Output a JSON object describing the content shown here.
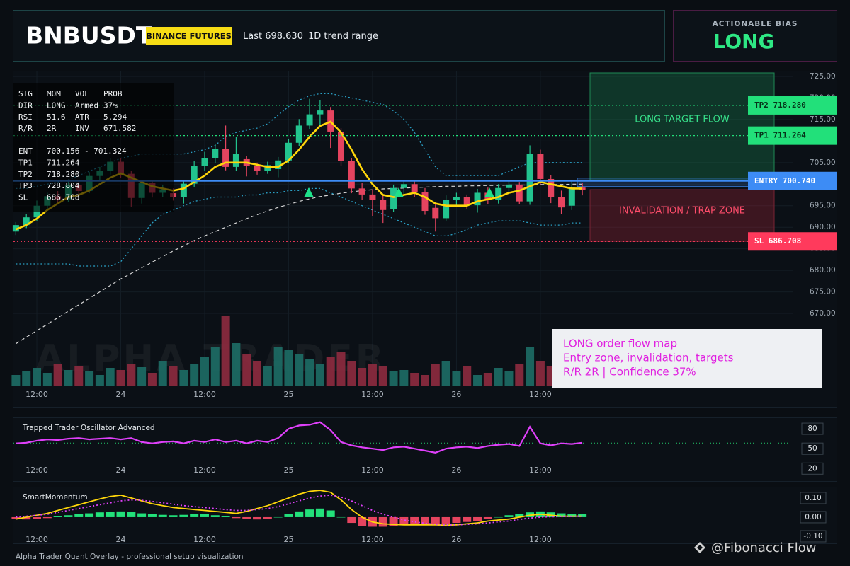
{
  "header": {
    "symbol": "BNBUSDT",
    "badge": "BINANCE FUTURES",
    "last": "Last 698.630",
    "range": "1D trend range"
  },
  "bias": {
    "label": "ACTIONABLE BIAS",
    "value": "LONG"
  },
  "info_panel": {
    "rows": [
      [
        "SIG",
        "MOM",
        "VOL",
        "PROB"
      ],
      [
        "DIR",
        "LONG",
        "Armed",
        "37%"
      ],
      [
        "RSI",
        "51.6",
        "ATR",
        "5.294"
      ],
      [
        "R/R",
        "2R",
        "INV",
        "671.582"
      ],
      [
        "ENT",
        "700.156 - 701.324"
      ],
      [
        "TP1",
        "711.264"
      ],
      [
        "TP2",
        "718.280"
      ],
      [
        "TP3",
        "728.804"
      ],
      [
        "SL",
        "686.708"
      ]
    ]
  },
  "zones": {
    "target": "LONG TARGET FLOW",
    "invalidation": "INVALIDATION / TRAP ZONE"
  },
  "annotation": {
    "lines": [
      "LONG order flow map",
      "Entry zone, invalidation, targets",
      "R/R 2R | Confidence 37%"
    ]
  },
  "watermark": "ALPHA TRADER",
  "footer": "Alpha Trader Quant Overlay - professional setup visualization",
  "credit": "@Fibonacci Flow",
  "chart_data": [
    {
      "type": "candlestick",
      "categories": [
        null,
        null,
        "12:00",
        null,
        null,
        null,
        null,
        null,
        null,
        null,
        "24",
        null,
        null,
        null,
        null,
        null,
        null,
        null,
        "12:00",
        null,
        null,
        null,
        null,
        null,
        null,
        null,
        "25",
        null,
        null,
        null,
        null,
        null,
        null,
        null,
        "12:00",
        null,
        null,
        null,
        null,
        null,
        null,
        null,
        "26",
        null,
        null,
        null,
        null,
        null,
        null,
        null,
        "12:00",
        null,
        null,
        null,
        null
      ],
      "up_color": "#22c38e",
      "down_color": "#e5445f",
      "candles": [
        [
          689.0,
          691.2,
          688.2,
          690.5
        ],
        [
          690.5,
          693.0,
          689.8,
          692.3
        ],
        [
          692.3,
          696.2,
          691.5,
          695.0
        ],
        [
          695.0,
          698.0,
          694.2,
          697.2
        ],
        [
          697.2,
          698.4,
          695.6,
          696.5
        ],
        [
          696.5,
          700.6,
          695.9,
          699.8
        ],
        [
          699.8,
          700.9,
          697.5,
          698.4
        ],
        [
          698.4,
          702.8,
          697.9,
          701.9
        ],
        [
          701.9,
          704.0,
          701.0,
          703.0
        ],
        [
          703.0,
          706.1,
          702.2,
          705.2
        ],
        [
          705.2,
          706.0,
          701.5,
          702.4
        ],
        [
          702.4,
          703.0,
          694.8,
          696.8
        ],
        [
          696.8,
          701.0,
          695.5,
          700.2
        ],
        [
          700.2,
          700.8,
          696.9,
          698.0
        ],
        [
          698.0,
          699.9,
          697.0,
          698.8
        ],
        [
          697.9,
          699.0,
          696.2,
          697.0
        ],
        [
          697.0,
          700.9,
          695.5,
          700.1
        ],
        [
          700.1,
          705.3,
          699.4,
          704.3
        ],
        [
          704.3,
          707.5,
          703.0,
          706.0
        ],
        [
          706.0,
          709.4,
          704.9,
          708.2
        ],
        [
          708.2,
          713.6,
          703.2,
          704.0
        ],
        [
          704.0,
          711.0,
          703.0,
          707.1
        ],
        [
          705.8,
          706.5,
          701.8,
          704.2
        ],
        [
          704.2,
          705.0,
          702.2,
          703.1
        ],
        [
          703.1,
          705.2,
          702.4,
          704.4
        ],
        [
          703.5,
          706.3,
          701.6,
          705.5
        ],
        [
          705.5,
          710.4,
          704.8,
          709.6
        ],
        [
          709.6,
          715.1,
          708.9,
          713.6
        ],
        [
          713.6,
          719.8,
          712.8,
          716.2
        ],
        [
          716.2,
          719.5,
          713.8,
          717.1
        ],
        [
          717.1,
          717.9,
          708.4,
          712.2
        ],
        [
          712.2,
          713.0,
          704.3,
          705.3
        ],
        [
          705.3,
          706.1,
          697.9,
          699.0
        ],
        [
          699.0,
          700.3,
          696.3,
          697.6
        ],
        [
          697.6,
          698.8,
          692.5,
          696.4
        ],
        [
          696.4,
          697.3,
          691.0,
          694.0
        ],
        [
          694.2,
          699.9,
          693.5,
          699.1
        ],
        [
          699.1,
          701.0,
          697.4,
          700.0
        ],
        [
          700.0,
          700.8,
          697.0,
          698.2
        ],
        [
          698.2,
          699.1,
          692.9,
          693.8
        ],
        [
          694.5,
          695.3,
          689.0,
          692.1
        ],
        [
          692.1,
          697.4,
          691.4,
          696.3
        ],
        [
          696.3,
          698.0,
          694.7,
          697.0
        ],
        [
          697.0,
          697.6,
          694.3,
          695.1
        ],
        [
          695.1,
          698.9,
          693.4,
          698.0
        ],
        [
          698.0,
          699.2,
          695.3,
          696.3
        ],
        [
          696.3,
          700.0,
          695.5,
          699.1
        ],
        [
          699.1,
          700.7,
          697.8,
          699.9
        ],
        [
          699.9,
          700.5,
          695.4,
          696.0
        ],
        [
          696.0,
          709.0,
          695.2,
          707.1
        ],
        [
          707.1,
          708.0,
          699.8,
          701.2
        ],
        [
          701.2,
          702.1,
          695.6,
          697.0
        ],
        [
          697.0,
          698.5,
          693.0,
          694.6
        ],
        [
          695.0,
          700.9,
          694.0,
          699.2
        ],
        [
          699.2,
          700.3,
          697.4,
          698.63
        ]
      ],
      "overlays": [
        {
          "color": "#d8d8d8",
          "style": "dashed",
          "width": 1.2,
          "values": [
            663,
            664.5,
            666,
            667.5,
            669,
            670.5,
            672,
            673.5,
            675,
            676.5,
            678,
            679.3,
            680.6,
            681.9,
            683.2,
            684.5,
            685.7,
            686.9,
            688,
            689,
            690,
            691,
            692,
            692.9,
            693.8,
            694.6,
            695.3,
            696,
            696.6,
            697.1,
            697.5,
            697.9,
            698.2,
            698.5,
            698.7,
            698.9,
            699,
            699.1,
            699.2,
            699.3,
            699.4,
            699.5,
            699.5,
            699.6,
            699.6,
            699.7,
            699.7,
            699.8,
            699.8,
            699.8,
            699.9,
            699.9,
            699.9,
            700,
            700
          ]
        },
        {
          "color": "#2a9fc4",
          "style": "dotted",
          "width": 1.3,
          "values": [
            699,
            699,
            699.5,
            700,
            700.5,
            701,
            702,
            703,
            704,
            705,
            706,
            706.5,
            707,
            707,
            707,
            707,
            707,
            707.5,
            708,
            709,
            711,
            712,
            712.5,
            713,
            714,
            716,
            718,
            719.5,
            720.5,
            721,
            721,
            720.5,
            720,
            719.5,
            719,
            718.5,
            717,
            715,
            712,
            708,
            704,
            702,
            702,
            702,
            702,
            702,
            702,
            703,
            704,
            705,
            705,
            705,
            705,
            705,
            705
          ]
        },
        {
          "color": "#2a9fc4",
          "style": "dotted",
          "width": 1.3,
          "values": [
            681.5,
            681.5,
            681.5,
            681.5,
            681.5,
            681.5,
            681,
            681,
            681,
            681,
            682,
            685,
            688,
            691,
            693,
            694,
            695,
            696,
            696.5,
            697,
            697,
            697,
            697.5,
            697.5,
            698,
            698,
            698.5,
            698.5,
            699,
            699,
            698,
            697,
            696,
            695,
            694,
            693,
            692,
            691,
            690,
            689,
            688,
            688,
            688.5,
            689.5,
            690.5,
            691,
            691.5,
            691.5,
            691.5,
            691,
            690.5,
            690.5,
            690.5,
            691,
            691
          ]
        },
        {
          "color": "#ffd60a",
          "style": "solid",
          "width": 2.6,
          "values": [
            689.5,
            690.5,
            692,
            694,
            695.5,
            697,
            697.5,
            698.5,
            700,
            701.5,
            702.5,
            701.5,
            700.5,
            699.5,
            699,
            698.5,
            699,
            700.5,
            702,
            704,
            705,
            705,
            705,
            704.5,
            704,
            704,
            705.5,
            708,
            711,
            713.5,
            714.5,
            712,
            708,
            703.5,
            700,
            697.5,
            697,
            697.5,
            698,
            697,
            695.5,
            695,
            695,
            695,
            696,
            696.5,
            697,
            698,
            698.5,
            699.5,
            700.5,
            700,
            699.5,
            699,
            699
          ]
        }
      ],
      "levels": [
        {
          "label": "TP2 718.280",
          "value": 718.28,
          "color": "#22e07a",
          "style": "dotted"
        },
        {
          "label": "TP1 711.264",
          "value": 711.264,
          "color": "#22e07a",
          "style": "dotted"
        },
        {
          "label": "ENTRY 700.740",
          "value": 700.74,
          "color": "#3d8cf5",
          "style": "solid"
        },
        {
          "label": "SL 686.708",
          "value": 686.708,
          "color": "#ff3a5c",
          "style": "dotted"
        }
      ],
      "ylim": [
        653.26,
        726.31
      ],
      "yticks": [
        {
          "value": 725,
          "label": "725.00"
        },
        {
          "value": 720,
          "label": "720.00"
        },
        {
          "value": 715,
          "label": "715.00"
        },
        {
          "value": 710,
          "label": "710.00"
        },
        {
          "value": 705,
          "label": "705.00"
        },
        {
          "value": 700,
          "label": "700.00"
        },
        {
          "value": 695,
          "label": "695.00"
        },
        {
          "value": 690,
          "label": "690.00"
        },
        {
          "value": 685,
          "label": "685.00"
        },
        {
          "value": 680,
          "label": "680.00"
        },
        {
          "value": 675,
          "label": "675.00"
        },
        {
          "value": 670,
          "label": "670.00"
        }
      ],
      "grid": true
    },
    {
      "type": "volume",
      "up_color": "#1d6e66",
      "down_color": "#8e2b3f",
      "values": [
        15,
        20,
        25,
        18,
        30,
        22,
        28,
        20,
        15,
        25,
        22,
        30,
        26,
        18,
        35,
        28,
        22,
        30,
        40,
        55,
        98,
        60,
        45,
        35,
        28,
        55,
        50,
        45,
        38,
        30,
        40,
        48,
        35,
        25,
        30,
        28,
        20,
        22,
        18,
        15,
        30,
        35,
        20,
        28,
        15,
        18,
        25,
        20,
        30,
        55,
        35,
        28,
        18,
        15,
        12
      ]
    },
    {
      "type": "line",
      "title": "Trapped Trader Oscillator Advanced",
      "color": "#e040fb",
      "values": [
        58,
        59,
        62,
        64,
        63,
        65,
        66,
        64,
        65,
        66,
        64,
        66,
        60,
        58,
        60,
        61,
        58,
        62,
        60,
        64,
        60,
        62,
        58,
        62,
        60,
        66,
        80,
        85,
        86,
        90,
        78,
        60,
        55,
        52,
        50,
        48,
        52,
        53,
        50,
        47,
        44,
        50,
        52,
        53,
        51,
        54,
        56,
        57,
        54,
        83,
        58,
        55,
        58,
        57,
        59
      ],
      "ylim": [
        15,
        95
      ],
      "yticks": [
        80,
        50,
        20
      ],
      "grid": true
    },
    {
      "type": "momentum",
      "title": "SmartMomentum",
      "up_color": "#22e07a",
      "down_color": "#e5445f",
      "values": [
        -0.01,
        -0.012,
        -0.01,
        -0.005,
        0.005,
        0.01,
        0.015,
        0.02,
        0.025,
        0.028,
        0.03,
        0.028,
        0.02,
        0.015,
        0.012,
        0.01,
        0.012,
        0.015,
        0.015,
        0.01,
        0.005,
        -0.005,
        -0.01,
        -0.012,
        -0.01,
        0.0,
        0.015,
        0.03,
        0.04,
        0.045,
        0.035,
        0.0,
        -0.03,
        -0.045,
        -0.05,
        -0.05,
        -0.045,
        -0.04,
        -0.035,
        -0.035,
        -0.04,
        -0.035,
        -0.03,
        -0.025,
        -0.02,
        -0.01,
        0.0,
        0.01,
        0.015,
        0.025,
        0.03,
        0.025,
        0.02,
        0.015,
        0.015
      ],
      "lines": [
        {
          "color": "#ffd60a",
          "style": "solid",
          "values": [
            -0.01,
            0.0,
            0.01,
            0.02,
            0.035,
            0.05,
            0.065,
            0.08,
            0.095,
            0.108,
            0.115,
            0.1,
            0.085,
            0.07,
            0.06,
            0.05,
            0.045,
            0.04,
            0.035,
            0.03,
            0.025,
            0.02,
            0.03,
            0.045,
            0.06,
            0.08,
            0.1,
            0.12,
            0.135,
            0.14,
            0.13,
            0.09,
            0.04,
            0.0,
            -0.025,
            -0.035,
            -0.038,
            -0.04,
            -0.04,
            -0.04,
            -0.04,
            -0.042,
            -0.04,
            -0.035,
            -0.03,
            -0.02,
            -0.015,
            -0.01,
            0.0,
            0.01,
            0.015,
            0.01,
            0.005,
            0.005,
            0.005
          ]
        },
        {
          "color": "#e040fb",
          "style": "dotted",
          "values": [
            0.0,
            0.005,
            0.01,
            0.015,
            0.025,
            0.035,
            0.045,
            0.055,
            0.065,
            0.075,
            0.085,
            0.09,
            0.088,
            0.082,
            0.075,
            0.068,
            0.06,
            0.055,
            0.05,
            0.045,
            0.04,
            0.035,
            0.035,
            0.04,
            0.045,
            0.055,
            0.07,
            0.085,
            0.1,
            0.11,
            0.115,
            0.105,
            0.085,
            0.06,
            0.035,
            0.015,
            0.0,
            -0.015,
            -0.025,
            -0.032,
            -0.038,
            -0.04,
            -0.04,
            -0.038,
            -0.035,
            -0.03,
            -0.025,
            -0.02,
            -0.012,
            -0.005,
            0.0,
            0.002,
            0.003,
            0.004,
            0.005
          ]
        }
      ],
      "ylim": [
        -0.126,
        0.159
      ],
      "yticks": [
        {
          "value": 0.1,
          "label": "0.10"
        },
        {
          "value": 0,
          "label": "0.00"
        },
        {
          "value": -0.1,
          "label": "-0.10"
        }
      ]
    }
  ]
}
